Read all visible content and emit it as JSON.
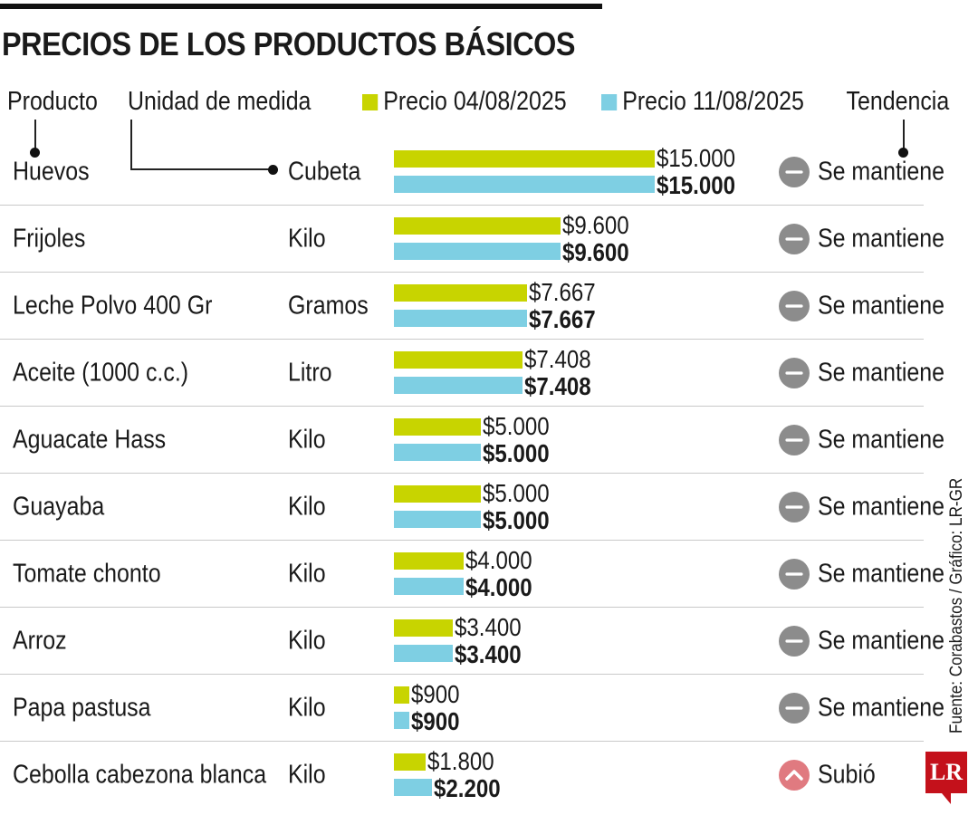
{
  "title": "PRECIOS DE LOS PRODUCTOS BÁSICOS",
  "headers": {
    "product": "Producto",
    "unit": "Unidad de medida",
    "series1": "Precio 04/08/2025",
    "series2": "Precio 11/08/2025",
    "trend": "Tendencia"
  },
  "colors": {
    "series1": "#c8d400",
    "series2": "#7ecfe3",
    "trend_same": "#8c8c8c",
    "trend_up": "#e07a80"
  },
  "icons": {
    "same": "minus-circle-icon",
    "up": "chevron-up-circle-icon"
  },
  "chart_data": {
    "type": "bar",
    "title": "PRECIOS DE LOS PRODUCTOS BÁSICOS",
    "orientation": "horizontal",
    "categories": [
      "Huevos",
      "Frijoles",
      "Leche Polvo 400 Gr",
      "Aceite (1000 c.c.)",
      "Aguacate Hass",
      "Guayaba",
      "Tomate chonto",
      "Arroz",
      "Papa pastusa",
      "Cebolla cabezona blanca"
    ],
    "units": [
      "Cubeta",
      "Kilo",
      "Gramos",
      "Litro",
      "Kilo",
      "Kilo",
      "Kilo",
      "Kilo",
      "Kilo",
      "Kilo"
    ],
    "series": [
      {
        "name": "Precio 04/08/2025",
        "values": [
          15000,
          9600,
          7667,
          7408,
          5000,
          5000,
          4000,
          3400,
          900,
          1800
        ],
        "labels": [
          "$15.000",
          "$9.600",
          "$7.667",
          "$7.408",
          "$5.000",
          "$5.000",
          "$4.000",
          "$3.400",
          "$900",
          "$1.800"
        ]
      },
      {
        "name": "Precio 11/08/2025",
        "values": [
          15000,
          9600,
          7667,
          7408,
          5000,
          5000,
          4000,
          3400,
          900,
          2200
        ],
        "labels": [
          "$15.000",
          "$9.600",
          "$7.667",
          "$7.408",
          "$5.000",
          "$5.000",
          "$4.000",
          "$3.400",
          "$900",
          "$2.200"
        ]
      }
    ],
    "trend": [
      "Se mantiene",
      "Se mantiene",
      "Se mantiene",
      "Se mantiene",
      "Se mantiene",
      "Se mantiene",
      "Se mantiene",
      "Se mantiene",
      "Se mantiene",
      "Subió"
    ],
    "trend_kind": [
      "same",
      "same",
      "same",
      "same",
      "same",
      "same",
      "same",
      "same",
      "same",
      "up"
    ],
    "xlim": [
      0,
      15000
    ],
    "legend": "top"
  },
  "source": "Fuente: Corabastos / Gráfico: LR-GR",
  "logo": "LR"
}
